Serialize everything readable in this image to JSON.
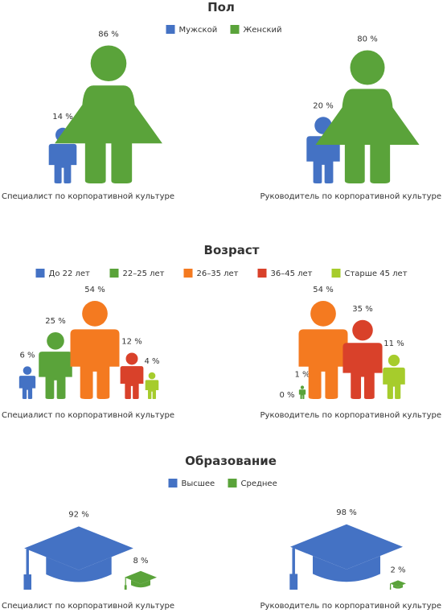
{
  "colors": {
    "male": "#4472c4",
    "female": "#5aa33a",
    "age1": "#4472c4",
    "age2": "#5aa33a",
    "age3": "#f47a20",
    "age4": "#d9412a",
    "age5": "#a6cc2c",
    "edu_high": "#4472c4",
    "edu_mid": "#5aa33a"
  },
  "icons": {
    "male": "person-icon",
    "female": "person-icon",
    "age": "person-icon",
    "education": "graduation-cap-icon"
  },
  "chart_data": [
    {
      "type": "bar",
      "title": "Пол",
      "legend_position": "top-center",
      "legend": [
        "Мужской",
        "Женский"
      ],
      "groups": [
        {
          "label": "Специалист по корпоративной культуре",
          "values": [
            14,
            86
          ],
          "value_labels": [
            "14 %",
            "86 %"
          ]
        },
        {
          "label": "Руководитель по корпоративной культуре",
          "values": [
            20,
            80
          ],
          "value_labels": [
            "20 %",
            "80 %"
          ]
        }
      ]
    },
    {
      "type": "bar",
      "title": "Возраст",
      "legend_position": "top-center",
      "legend": [
        "До 22 лет",
        "22–25 лет",
        "26–35 лет",
        "36–45 лет",
        "Старше 45 лет"
      ],
      "groups": [
        {
          "label": "Специалист по корпоративной культуре",
          "values": [
            6,
            25,
            54,
            12,
            4
          ],
          "value_labels": [
            "6 %",
            "25 %",
            "54 %",
            "12 %",
            "4 %"
          ]
        },
        {
          "label": "Руководитель по корпоративной культуре",
          "values": [
            0,
            1,
            54,
            35,
            11
          ],
          "value_labels": [
            "0 %",
            "1 %",
            "54 %",
            "35 %",
            "11 %"
          ]
        }
      ]
    },
    {
      "type": "bar",
      "title": "Образование",
      "legend_position": "top-center",
      "legend": [
        "Высшее",
        "Среднее"
      ],
      "groups": [
        {
          "label": "Специалист по корпоративной культуре",
          "values": [
            92,
            8
          ],
          "value_labels": [
            "92 %",
            "8 %"
          ]
        },
        {
          "label": "Руководитель по корпоративной культуре",
          "values": [
            98,
            2
          ],
          "value_labels": [
            "98 %",
            "2 %"
          ]
        }
      ]
    }
  ]
}
